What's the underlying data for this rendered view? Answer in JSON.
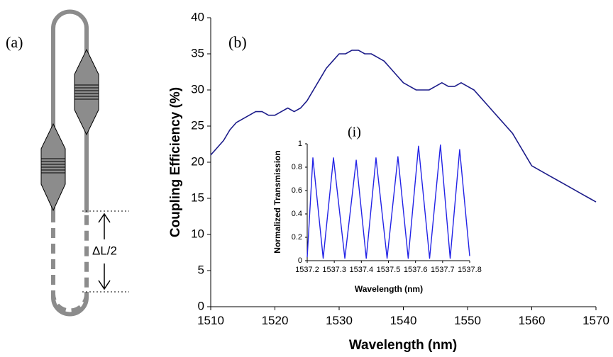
{
  "diagram": {
    "label": "(a)",
    "annotation": "ΔL/2"
  },
  "chart_data": [
    {
      "type": "line",
      "label": "(b)",
      "x_label": "Wavelength (nm)",
      "y_label": "Coupling Efficiency (%)",
      "xlim": [
        1510,
        1570
      ],
      "xticks": [
        1510,
        1520,
        1530,
        1540,
        1550,
        1560,
        1570
      ],
      "ylim": [
        0,
        40
      ],
      "yticks": [
        0,
        5,
        10,
        15,
        20,
        25,
        30,
        35,
        40
      ],
      "color": "#1c1c8a",
      "x": [
        1510,
        1511,
        1512,
        1513,
        1514,
        1515,
        1516,
        1517,
        1518,
        1519,
        1520,
        1521,
        1522,
        1523,
        1524,
        1525,
        1526,
        1527,
        1528,
        1529,
        1530,
        1531,
        1532,
        1533,
        1534,
        1535,
        1536,
        1537,
        1538,
        1539,
        1540,
        1541,
        1542,
        1543,
        1544,
        1545,
        1546,
        1547,
        1548,
        1549,
        1550,
        1551,
        1552,
        1553,
        1554,
        1555,
        1556,
        1557,
        1558,
        1559,
        1560,
        1561,
        1562,
        1563,
        1564,
        1565,
        1566,
        1567,
        1568,
        1569,
        1570
      ],
      "values": [
        21,
        22,
        23,
        24.5,
        25.5,
        26,
        26.5,
        27,
        27,
        26.5,
        26.5,
        27,
        27.5,
        27,
        27.5,
        28.5,
        30,
        31.5,
        33,
        34,
        35,
        35,
        35.5,
        35.5,
        35,
        35,
        34.5,
        34,
        33,
        32,
        31,
        30.5,
        30,
        30,
        30,
        30.5,
        31,
        30.5,
        30.5,
        31,
        30.5,
        30,
        29,
        28,
        27,
        26,
        25,
        24,
        22.5,
        21,
        19.5,
        19,
        18.5,
        18,
        17.5,
        17,
        16.5,
        16,
        15.5,
        15,
        14.5
      ]
    },
    {
      "type": "line",
      "label": "(i)",
      "x_label": "Wavelength (nm)",
      "y_label": "Normalized Transmission",
      "xlim": [
        1537.2,
        1537.8
      ],
      "xticks": [
        1537.2,
        1537.3,
        1537.4,
        1537.5,
        1537.6,
        1537.7,
        1537.8
      ],
      "ylim": [
        0,
        1
      ],
      "yticks": [
        0,
        0.2,
        0.4,
        0.6,
        0.8,
        1
      ],
      "color": "#2323e6",
      "x": [
        1537.2,
        1537.221,
        1537.259,
        1537.297,
        1537.339,
        1537.381,
        1537.418,
        1537.454,
        1537.495,
        1537.535,
        1537.573,
        1537.611,
        1537.652,
        1537.692,
        1537.728,
        1537.763,
        1537.8
      ],
      "values": [
        0.03,
        0.88,
        0.02,
        0.88,
        0.02,
        0.86,
        0.02,
        0.88,
        0.02,
        0.89,
        0.02,
        0.98,
        0.02,
        0.99,
        0.02,
        0.95,
        0.04
      ]
    }
  ]
}
